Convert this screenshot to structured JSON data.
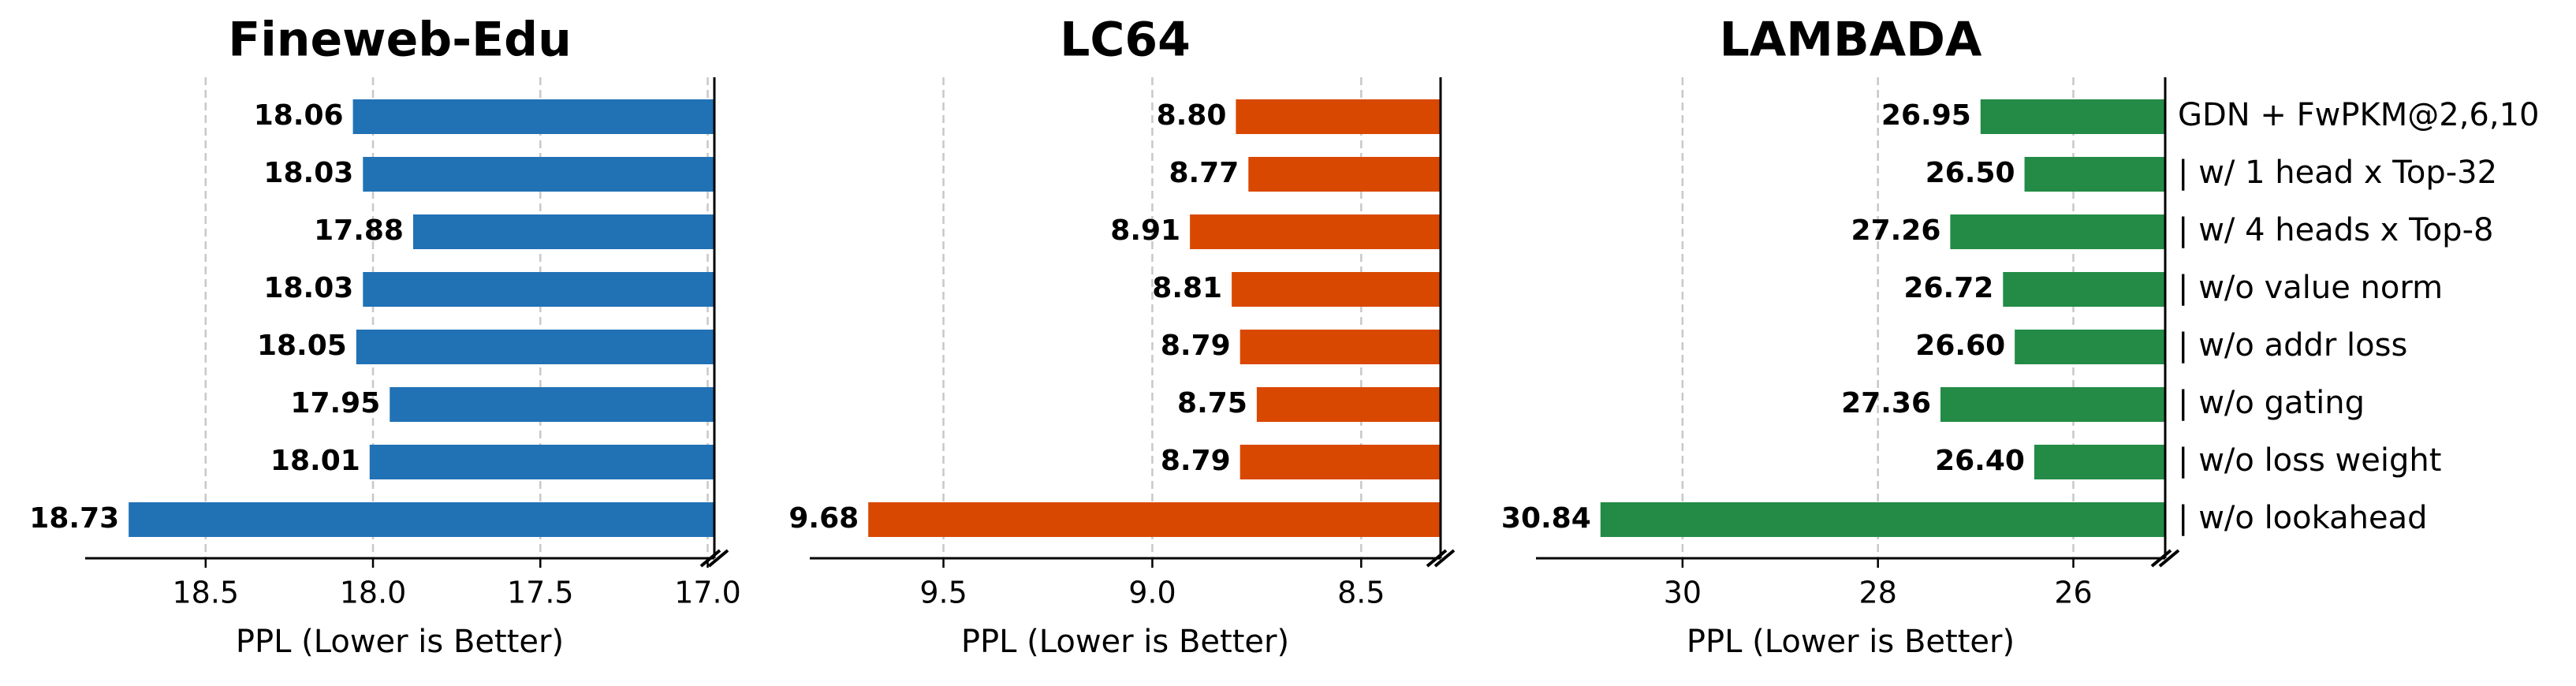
{
  "chart_data": [
    {
      "type": "barh",
      "title": "Fineweb-Edu",
      "x_label": "PPL (Lower is Better)",
      "color": "#2171b5",
      "values": [
        18.06,
        18.03,
        17.88,
        18.03,
        18.05,
        17.95,
        18.01,
        18.73
      ],
      "value_labels": [
        "18.06",
        "18.03",
        "17.88",
        "18.03",
        "18.05",
        "17.95",
        "18.01",
        "18.73"
      ],
      "xlim": [
        18.86,
        16.98
      ],
      "xticks": [
        18.5,
        {
          "value": 18.0,
          "label": "18.0"
        },
        17.5,
        {
          "value": 17.0,
          "label": "17.0"
        }
      ],
      "grid": true
    },
    {
      "type": "barh",
      "title": "LC64",
      "x_label": "PPL (Lower is Better)",
      "color": "#d94801",
      "values": [
        8.8,
        8.77,
        8.91,
        8.81,
        8.79,
        8.75,
        8.79,
        9.68
      ],
      "value_labels": [
        "8.80",
        "8.77",
        "8.91",
        "8.81",
        "8.79",
        "8.75",
        "8.79",
        "9.68"
      ],
      "xlim": [
        9.82,
        8.31
      ],
      "xticks": [
        9.5,
        {
          "value": 9.0,
          "label": "9.0"
        },
        8.5
      ],
      "grid": true
    },
    {
      "type": "barh",
      "title": "LAMBADA",
      "x_label": "PPL (Lower is Better)",
      "color": "#238b45",
      "categories": [
        "GDN + FwPKM@2,6,10",
        "| w/ 1 head x Top-32",
        "| w/ 4 heads x Top-8",
        "| w/o value norm",
        "| w/o addr loss",
        "| w/o gating",
        "| w/o loss weight",
        "| w/o lookahead"
      ],
      "values": [
        26.95,
        26.5,
        27.26,
        26.72,
        26.6,
        27.36,
        26.4,
        30.84
      ],
      "value_labels": [
        "26.95",
        "26.50",
        "27.26",
        "26.72",
        "26.60",
        "27.36",
        "26.40",
        "30.84"
      ],
      "xlim": [
        31.5,
        25.06
      ],
      "xticks": [
        30,
        28,
        26
      ],
      "grid": true
    }
  ]
}
